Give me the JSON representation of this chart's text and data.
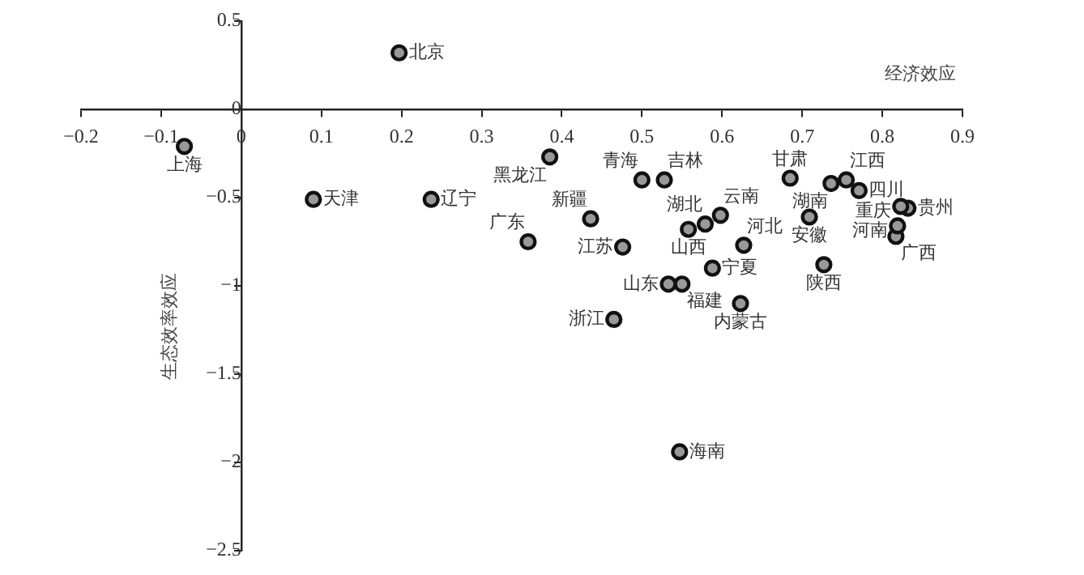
{
  "chart_data": {
    "type": "scatter",
    "xlabel": "经济效应",
    "ylabel": "生态效率效应",
    "xlim": [
      -0.2,
      0.9
    ],
    "ylim": [
      -2.5,
      0.5
    ],
    "xticks": [
      {
        "value": -0.2,
        "label": "−0.2"
      },
      {
        "value": -0.1,
        "label": "−0.1"
      },
      0,
      0.1,
      0.2,
      0.3,
      0.4,
      0.5,
      0.6,
      0.7,
      0.8,
      0.9
    ],
    "yticks": [
      {
        "value": -2.5,
        "label": "−2.5"
      },
      {
        "value": -2,
        "label": "−2"
      },
      {
        "value": -1.5,
        "label": "−1.5"
      },
      {
        "value": -1,
        "label": "−1"
      },
      {
        "value": -0.5,
        "label": "−0.5"
      },
      0,
      0.5
    ],
    "grid": false,
    "legend": false,
    "marker": "circle",
    "series": [
      {
        "name": "北京",
        "color": "#999999",
        "x": [
          0.197
        ],
        "values": [
          0.32
        ]
      },
      {
        "name": "上海",
        "color": "#999999",
        "x": [
          -0.071
        ],
        "values": [
          -0.21
        ]
      },
      {
        "name": "天津",
        "color": "#999999",
        "x": [
          0.09
        ],
        "values": [
          -0.51
        ]
      },
      {
        "name": "辽宁",
        "color": "#999999",
        "x": [
          0.237
        ],
        "values": [
          -0.51
        ]
      },
      {
        "name": "黑龙江",
        "color": "#999999",
        "x": [
          0.385
        ],
        "values": [
          -0.27
        ]
      },
      {
        "name": "广东",
        "color": "#999999",
        "x": [
          0.358
        ],
        "values": [
          -0.75
        ]
      },
      {
        "name": "新疆",
        "color": "#999999",
        "x": [
          0.436
        ],
        "values": [
          -0.62
        ]
      },
      {
        "name": "青海",
        "color": "#999999",
        "x": [
          0.5
        ],
        "values": [
          -0.4
        ]
      },
      {
        "name": "吉林",
        "color": "#999999",
        "x": [
          0.528
        ],
        "values": [
          -0.4
        ]
      },
      {
        "name": "江苏",
        "color": "#999999",
        "x": [
          0.476
        ],
        "values": [
          -0.78
        ]
      },
      {
        "name": "山西",
        "color": "#999999",
        "x": [
          0.558
        ],
        "values": [
          -0.68
        ]
      },
      {
        "name": "湖北",
        "color": "#999999",
        "x": [
          0.579
        ],
        "values": [
          -0.65
        ]
      },
      {
        "name": "云南",
        "color": "#999999",
        "x": [
          0.598
        ],
        "values": [
          -0.6
        ]
      },
      {
        "name": "河北",
        "color": "#999999",
        "x": [
          0.627
        ],
        "values": [
          -0.77
        ]
      },
      {
        "name": "宁夏",
        "color": "#999999",
        "x": [
          0.588
        ],
        "values": [
          -0.9
        ]
      },
      {
        "name": "山东",
        "color": "#999999",
        "x": [
          0.533
        ],
        "values": [
          -0.99
        ]
      },
      {
        "name": "福建",
        "color": "#999999",
        "x": [
          0.55
        ],
        "values": [
          -0.99
        ]
      },
      {
        "name": "内蒙古",
        "color": "#999999",
        "x": [
          0.623
        ],
        "values": [
          -1.1
        ]
      },
      {
        "name": "浙江",
        "color": "#999999",
        "x": [
          0.465
        ],
        "values": [
          -1.19
        ]
      },
      {
        "name": "海南",
        "color": "#999999",
        "x": [
          0.547
        ],
        "values": [
          -1.94
        ]
      },
      {
        "name": "甘肃",
        "color": "#999999",
        "x": [
          0.685
        ],
        "values": [
          -0.39
        ]
      },
      {
        "name": "湖南",
        "color": "#999999",
        "x": [
          0.736
        ],
        "values": [
          -0.42
        ]
      },
      {
        "name": "江西",
        "color": "#999999",
        "x": [
          0.755
        ],
        "values": [
          -0.4
        ]
      },
      {
        "name": "四川",
        "color": "#999999",
        "x": [
          0.771
        ],
        "values": [
          -0.46
        ]
      },
      {
        "name": "安徽",
        "color": "#999999",
        "x": [
          0.709
        ],
        "values": [
          -0.61
        ]
      },
      {
        "name": "重庆",
        "color": "#999999",
        "x": [
          0.823
        ],
        "values": [
          -0.55
        ]
      },
      {
        "name": "贵州",
        "color": "#999999",
        "x": [
          0.832
        ],
        "values": [
          -0.56
        ]
      },
      {
        "name": "河南",
        "color": "#999999",
        "x": [
          0.819
        ],
        "values": [
          -0.66
        ]
      },
      {
        "name": "广西",
        "color": "#999999",
        "x": [
          0.817
        ],
        "values": [
          -0.72
        ]
      },
      {
        "name": "陕西",
        "color": "#999999",
        "x": [
          0.727
        ],
        "values": [
          -0.88
        ]
      }
    ]
  }
}
